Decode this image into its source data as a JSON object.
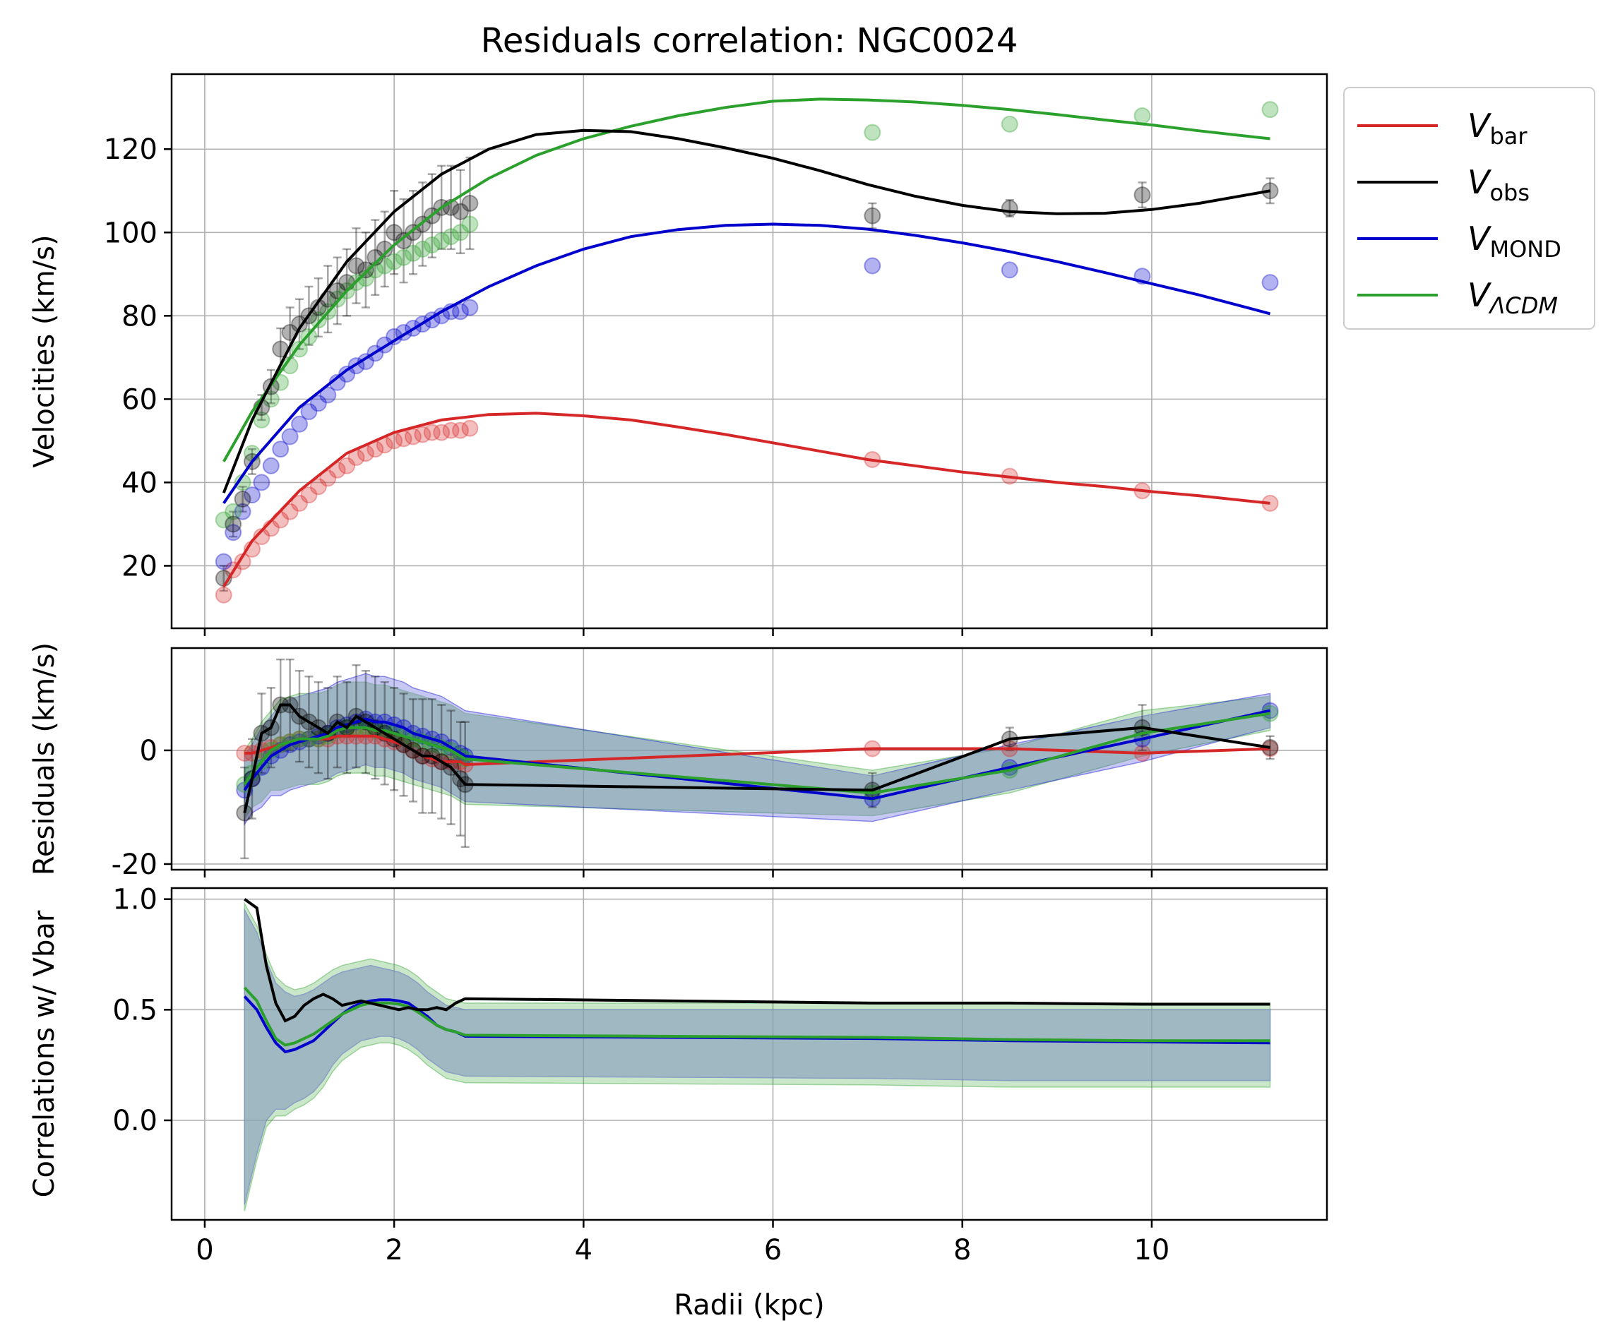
{
  "chart_data": {
    "type": "line",
    "title": "Residuals correlation: NGC0024",
    "xlabel": "Radii (kpc)",
    "x_ticks": [
      0,
      2,
      4,
      6,
      8,
      10
    ],
    "xlim": [
      -0.35,
      11.85
    ],
    "grid": true,
    "legend": {
      "placement": "outside-top-right",
      "entries": [
        {
          "main": "V",
          "sub": "bar",
          "color": "#d62728"
        },
        {
          "main": "V",
          "sub": "obs",
          "color": "#000000"
        },
        {
          "main": "V",
          "sub": "MOND",
          "color": "#0000cc"
        },
        {
          "main": "V",
          "sub": "ΛCDM",
          "color": "#2ca02c",
          "italic_sub": true
        }
      ]
    },
    "colors": {
      "bar": "#d62728",
      "obs": "#000000",
      "mond": "#0000cc",
      "lcdm": "#2ca02c",
      "band_overlap": "#9fb7bd"
    },
    "panels": [
      {
        "id": "velocities",
        "ylabel": "Velocities (km/s)",
        "ylim": [
          5,
          138
        ],
        "y_ticks": [
          20,
          40,
          60,
          80,
          100,
          120
        ],
        "points_x": [
          0.2,
          0.3,
          0.4,
          0.5,
          0.6,
          0.7,
          0.8,
          0.9,
          1.0,
          1.1,
          1.2,
          1.3,
          1.4,
          1.5,
          1.6,
          1.7,
          1.8,
          1.9,
          2.0,
          2.1,
          2.2,
          2.3,
          2.4,
          2.5,
          2.6,
          2.7,
          2.8,
          7.05,
          8.5,
          9.9,
          11.25
        ],
        "points_obs": [
          17,
          30,
          36,
          45,
          58,
          63,
          72,
          76,
          78,
          80,
          82,
          84,
          86,
          88,
          92,
          91,
          94,
          96,
          100,
          98,
          100,
          102,
          104,
          106,
          106,
          105,
          107,
          104,
          105.8,
          109,
          110
        ],
        "obs_err": [
          3,
          3,
          3,
          3,
          3,
          4,
          5,
          6,
          6,
          7,
          7,
          8,
          8,
          8,
          9,
          9,
          9,
          9,
          10,
          10,
          10,
          10,
          10,
          10,
          10,
          10,
          11,
          3,
          2,
          3,
          3
        ],
        "points_mond": [
          21,
          28,
          33,
          37,
          40,
          44,
          48,
          51,
          54,
          57,
          59,
          61,
          64,
          66,
          68,
          69,
          71,
          73,
          75,
          76,
          77,
          78,
          79,
          80,
          81,
          81,
          82,
          92,
          91,
          89.5,
          88
        ],
        "points_bar": [
          13,
          19,
          21,
          24,
          27,
          29,
          31,
          33,
          35,
          37,
          39,
          41,
          43,
          44,
          46,
          47,
          48,
          49,
          50,
          50.5,
          51,
          51.5,
          52,
          52,
          52.5,
          52.5,
          53,
          45.5,
          41.5,
          38,
          35
        ],
        "points_lcdm": [
          31,
          33,
          40,
          47,
          55,
          60,
          64,
          68,
          72,
          75,
          79,
          81,
          84,
          86,
          88,
          89,
          91,
          92,
          93,
          94,
          95,
          96,
          97,
          98,
          99,
          100,
          102,
          124,
          126,
          128,
          129.5
        ],
        "curve_x": [
          0.2,
          0.5,
          1.0,
          1.5,
          2.0,
          2.5,
          3.0,
          3.5,
          4.0,
          4.5,
          5.0,
          5.5,
          6.0,
          6.5,
          7.0,
          7.5,
          8.0,
          8.5,
          9.0,
          9.5,
          10.0,
          10.5,
          11.25
        ],
        "curve_bar": [
          15,
          26,
          38,
          47,
          52,
          55,
          56.3,
          56.6,
          56,
          55,
          53.3,
          51.5,
          49.5,
          47.5,
          45.5,
          44,
          42.5,
          41.3,
          40,
          39,
          37.8,
          36.8,
          35
        ],
        "curve_obs": [
          37.5,
          55,
          77,
          93,
          105,
          114,
          120,
          123.5,
          124.5,
          124.2,
          122.5,
          120.3,
          117.8,
          114.8,
          111.5,
          108.7,
          106.5,
          105,
          104.5,
          104.6,
          105.5,
          107,
          110
        ],
        "curve_mond": [
          35,
          45,
          58,
          67,
          74,
          81,
          87,
          92,
          96,
          99,
          100.7,
          101.7,
          102,
          101.7,
          100.8,
          99.3,
          97.5,
          95.4,
          93,
          90.4,
          87.7,
          85,
          80.5
        ],
        "curve_lcdm": [
          45,
          57,
          73,
          86,
          97,
          106,
          113,
          118.5,
          122.5,
          125.5,
          128,
          130,
          131.5,
          132,
          131.8,
          131.3,
          130.5,
          129.5,
          128.3,
          127,
          125.8,
          124.4,
          122.5
        ]
      },
      {
        "id": "residuals",
        "ylabel": "Residuals (km/s)",
        "ylim": [
          -21,
          18
        ],
        "y_ticks": [
          -20,
          0
        ],
        "x": [
          0.42,
          0.5,
          0.6,
          0.7,
          0.8,
          0.9,
          1.0,
          1.1,
          1.2,
          1.3,
          1.4,
          1.5,
          1.6,
          1.7,
          1.8,
          1.9,
          2.0,
          2.1,
          2.2,
          2.3,
          2.4,
          2.5,
          2.6,
          2.7,
          2.75,
          7.05,
          8.5,
          9.9,
          11.25
        ],
        "res_obs": [
          -11,
          -5,
          3,
          4,
          8,
          8,
          6,
          5,
          4,
          3,
          5,
          4,
          6,
          5,
          4,
          3,
          2,
          1,
          0,
          -1,
          -1,
          -2,
          -3,
          -5,
          -6,
          -7,
          2,
          4,
          0.5
        ],
        "res_obs_err": [
          8,
          7,
          7,
          7,
          8,
          8,
          8,
          8,
          8,
          8,
          8,
          8,
          9,
          9,
          9,
          9,
          9,
          9,
          9,
          10,
          10,
          10,
          10,
          10,
          11,
          3,
          2,
          4,
          2
        ],
        "res_bar": [
          -0.5,
          -0.5,
          0,
          0.5,
          1,
          1.5,
          2,
          2,
          2,
          2,
          2.5,
          2.5,
          2.5,
          2.5,
          2.5,
          2,
          1.5,
          1,
          0,
          -1,
          -1.5,
          -2,
          -2,
          -2,
          -2.5,
          0.3,
          0.3,
          -0.5,
          0.3
        ],
        "res_mond": [
          -7,
          -5,
          -3,
          -1,
          0,
          1,
          1.5,
          2,
          2.5,
          3,
          4,
          4.5,
          5,
          5.5,
          5,
          5,
          4.5,
          4,
          3,
          2.5,
          2,
          1.5,
          0.5,
          -0.5,
          -1,
          -8.5,
          -3,
          2,
          7
        ],
        "res_lcdm": [
          -6,
          -4,
          -2,
          0,
          1,
          1.5,
          2,
          2,
          2,
          2.5,
          3.5,
          4,
          4,
          4,
          3.5,
          3.5,
          3,
          2.5,
          2,
          1.5,
          1,
          0.5,
          0,
          -1,
          -1.5,
          -7.5,
          -3.5,
          3,
          6.5
        ],
        "band_halfwidth": [
          6,
          6,
          7,
          7,
          8,
          8,
          8,
          8,
          8,
          8,
          8,
          8,
          8,
          8,
          8,
          8,
          8,
          8,
          8,
          8,
          8,
          8,
          8,
          8,
          8,
          4,
          4,
          4,
          3
        ],
        "curve_x": [
          0.42,
          0.5,
          0.6,
          0.7,
          0.8,
          0.9,
          1.0,
          1.1,
          1.2,
          1.3,
          1.4,
          1.5,
          1.6,
          1.7,
          1.8,
          1.9,
          2.0,
          2.1,
          2.2,
          2.3,
          2.4,
          2.5,
          2.6,
          2.7,
          2.75,
          7.05,
          8.5,
          9.9,
          11.25
        ],
        "curve_obs": [
          -11,
          -5,
          3,
          4,
          8,
          8,
          6,
          5,
          4,
          3,
          5,
          4,
          6,
          5,
          4,
          3,
          2,
          1,
          0,
          -1,
          -1,
          -2,
          -3,
          -5,
          -6,
          -7,
          2,
          4,
          0.5
        ],
        "curve_bar": [
          -0.5,
          -0.5,
          0,
          0.5,
          1,
          1.5,
          2,
          2,
          2,
          2,
          2.5,
          2.5,
          2.5,
          2.5,
          2.5,
          2,
          1.5,
          1,
          0,
          -1,
          -1.5,
          -2,
          -2,
          -2,
          -2.5,
          0.3,
          0.3,
          -0.5,
          0.3
        ],
        "curve_mond": [
          -7,
          -5,
          -3,
          -1,
          0,
          1,
          1.5,
          2,
          2.5,
          3,
          4,
          4.5,
          5,
          5.5,
          5,
          5,
          4.5,
          4,
          3,
          2.5,
          2,
          1.5,
          0.5,
          -0.5,
          -1,
          -8.5,
          -3,
          2,
          7
        ],
        "curve_lcdm": [
          -6,
          -4,
          -2,
          0,
          1,
          1.5,
          2,
          2,
          2,
          2.5,
          3.5,
          4,
          4,
          4,
          3.5,
          3.5,
          3,
          2.5,
          2,
          1.5,
          1,
          0.5,
          0,
          -1,
          -1.5,
          -7.5,
          -3.5,
          3,
          6.5
        ]
      },
      {
        "id": "correlations",
        "ylabel": "Correlations w/ Vbar",
        "ylim": [
          -0.45,
          1.05
        ],
        "y_ticks": [
          0.0,
          0.5,
          1.0
        ],
        "x": [
          0.42,
          0.55,
          0.65,
          0.75,
          0.85,
          0.95,
          1.05,
          1.15,
          1.25,
          1.35,
          1.45,
          1.55,
          1.65,
          1.75,
          1.85,
          1.95,
          2.05,
          2.15,
          2.25,
          2.35,
          2.45,
          2.55,
          2.65,
          2.75,
          7.05,
          8.5,
          9.9,
          11.25
        ],
        "corr_obs": [
          1.0,
          0.96,
          0.7,
          0.53,
          0.45,
          0.47,
          0.52,
          0.55,
          0.57,
          0.55,
          0.52,
          0.53,
          0.54,
          0.53,
          0.52,
          0.51,
          0.5,
          0.51,
          0.5,
          0.5,
          0.51,
          0.5,
          0.53,
          0.55,
          0.53,
          0.53,
          0.525,
          0.525
        ],
        "corr_mond": [
          0.56,
          0.5,
          0.42,
          0.35,
          0.31,
          0.32,
          0.34,
          0.36,
          0.4,
          0.44,
          0.48,
          0.51,
          0.53,
          0.54,
          0.545,
          0.545,
          0.54,
          0.53,
          0.5,
          0.47,
          0.43,
          0.41,
          0.4,
          0.38,
          0.37,
          0.36,
          0.355,
          0.35
        ],
        "corr_lcdm": [
          0.6,
          0.54,
          0.45,
          0.37,
          0.34,
          0.35,
          0.37,
          0.39,
          0.42,
          0.45,
          0.48,
          0.5,
          0.52,
          0.53,
          0.53,
          0.53,
          0.525,
          0.515,
          0.49,
          0.46,
          0.43,
          0.41,
          0.4,
          0.385,
          0.375,
          0.365,
          0.36,
          0.36
        ],
        "band_upper": [
          0.95,
          0.85,
          0.72,
          0.62,
          0.58,
          0.56,
          0.57,
          0.59,
          0.62,
          0.65,
          0.67,
          0.68,
          0.69,
          0.7,
          0.69,
          0.68,
          0.67,
          0.65,
          0.62,
          0.58,
          0.55,
          0.52,
          0.51,
          0.5,
          0.5,
          0.5,
          0.5,
          0.5
        ],
        "band_lower": [
          -0.38,
          -0.15,
          0.0,
          0.05,
          0.05,
          0.08,
          0.1,
          0.13,
          0.18,
          0.25,
          0.3,
          0.33,
          0.36,
          0.37,
          0.38,
          0.38,
          0.37,
          0.35,
          0.32,
          0.28,
          0.25,
          0.22,
          0.21,
          0.2,
          0.19,
          0.18,
          0.18,
          0.18
        ]
      }
    ]
  }
}
